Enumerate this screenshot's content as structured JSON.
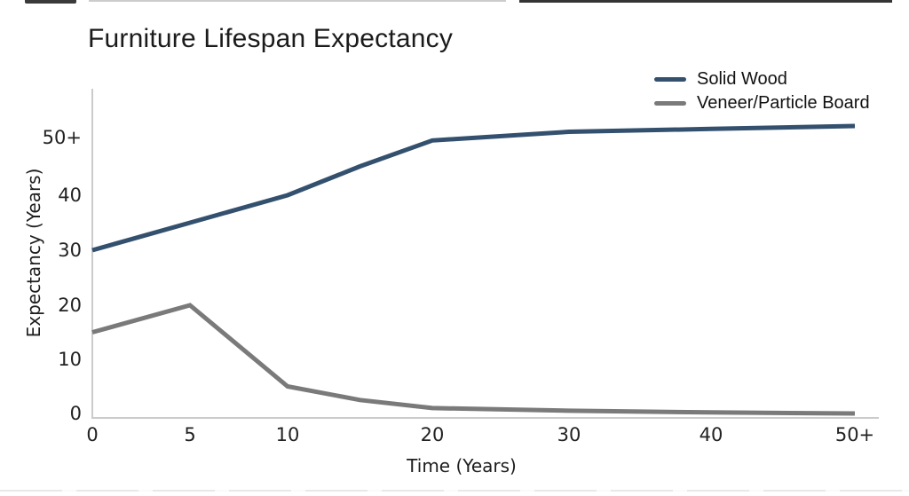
{
  "title": "Furniture Lifespan Expectancy",
  "colors": {
    "solid_wood": "#33506E",
    "veneer_particle_board": "#7A7A7A",
    "axis_line": "#CBCBCB",
    "text": "#1B1B1B",
    "background": "#FFFFFF"
  },
  "legend": {
    "items": [
      {
        "label": "Solid Wood",
        "color": "#33506E"
      },
      {
        "label": "Veneer/Particle Board",
        "color": "#7A7A7A"
      }
    ]
  },
  "chart_data": {
    "type": "line",
    "title": "Furniture Lifespan Expectancy",
    "xlabel": "Time (Years)",
    "ylabel": "Expectancy (Years)",
    "x": [
      0,
      5,
      10,
      15,
      20,
      30,
      40,
      50
    ],
    "series": [
      {
        "name": "Solid Wood",
        "color": "#33506E",
        "values": [
          30,
          35,
          40,
          45,
          49.5,
          51,
          51.5,
          52
        ]
      },
      {
        "name": "Veneer/Particle Board",
        "color": "#7A7A7A",
        "values": [
          15,
          20,
          5,
          2.5,
          1,
          0.5,
          0.2,
          0
        ]
      }
    ],
    "x_ticks": {
      "values": [
        0,
        5,
        10,
        20,
        30,
        40,
        50
      ],
      "labels": [
        "0",
        "5",
        "10",
        "20",
        "30",
        "40",
        "50+"
      ]
    },
    "y_ticks": {
      "values": [
        0,
        10,
        20,
        30,
        40,
        50
      ],
      "labels": [
        "0",
        "10",
        "20",
        "30",
        "40",
        "50+"
      ]
    },
    "ylim": [
      0,
      55
    ],
    "grid": false,
    "legend_position": "top-right",
    "axis_note": "x axis non-linear: 5-year steps to 10, then 10-year steps; top of both axes open-ended (50+)"
  }
}
